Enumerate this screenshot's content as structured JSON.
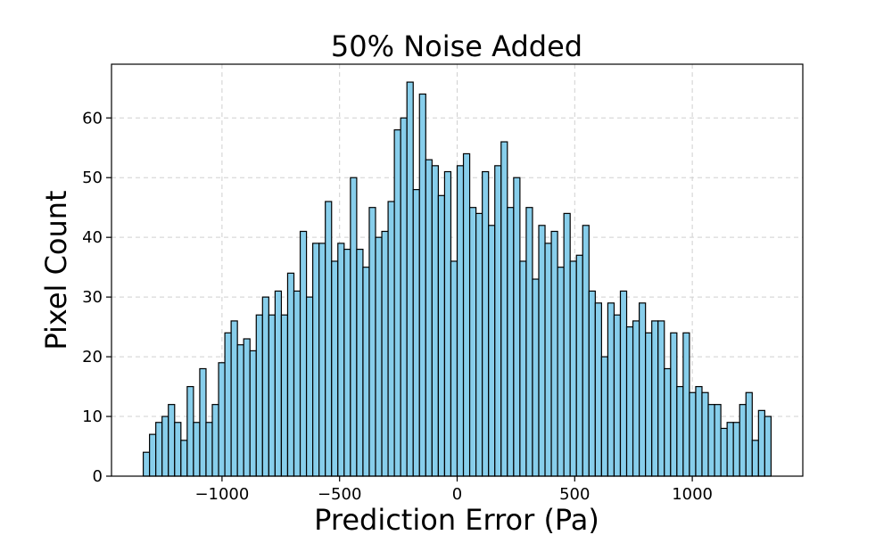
{
  "chart_data": {
    "type": "bar",
    "title": "50% Noise Added",
    "xlabel": "Prediction Error (Pa)",
    "ylabel": "Pixel Count",
    "xlim": [
      -1470,
      1470
    ],
    "ylim": [
      0,
      69
    ],
    "grid": true,
    "bar_color": "#87CEEB",
    "edge_color": "#000000",
    "x_ticks": [
      {
        "value": -1000,
        "label": "−1000"
      },
      {
        "value": -500,
        "label": "−500"
      },
      {
        "value": 0,
        "label": "0"
      },
      {
        "value": 500,
        "label": "500"
      },
      {
        "value": 1000,
        "label": "1000"
      }
    ],
    "y_ticks": [
      {
        "value": 0,
        "label": "0"
      },
      {
        "value": 10,
        "label": "10"
      },
      {
        "value": 20,
        "label": "20"
      },
      {
        "value": 30,
        "label": "30"
      },
      {
        "value": 40,
        "label": "40"
      },
      {
        "value": 50,
        "label": "50"
      },
      {
        "value": 60,
        "label": "60"
      }
    ],
    "bins": {
      "start": -1335,
      "end": 1335,
      "counts": [
        4,
        7,
        9,
        10,
        12,
        9,
        6,
        15,
        9,
        18,
        9,
        12,
        19,
        24,
        26,
        22,
        23,
        21,
        27,
        30,
        27,
        31,
        27,
        34,
        31,
        41,
        30,
        39,
        39,
        46,
        36,
        39,
        38,
        50,
        38,
        35,
        45,
        40,
        41,
        46,
        58,
        60,
        66,
        48,
        64,
        53,
        52,
        47,
        51,
        36,
        52,
        54,
        45,
        44,
        51,
        42,
        52,
        56,
        45,
        50,
        36,
        45,
        33,
        42,
        39,
        41,
        35,
        44,
        36,
        37,
        42,
        31,
        29,
        20,
        29,
        27,
        31,
        25,
        26,
        29,
        24,
        26,
        26,
        18,
        24,
        15,
        24,
        14,
        15,
        14,
        12,
        12,
        8,
        9,
        9,
        12,
        14,
        6,
        11,
        10
      ]
    }
  }
}
